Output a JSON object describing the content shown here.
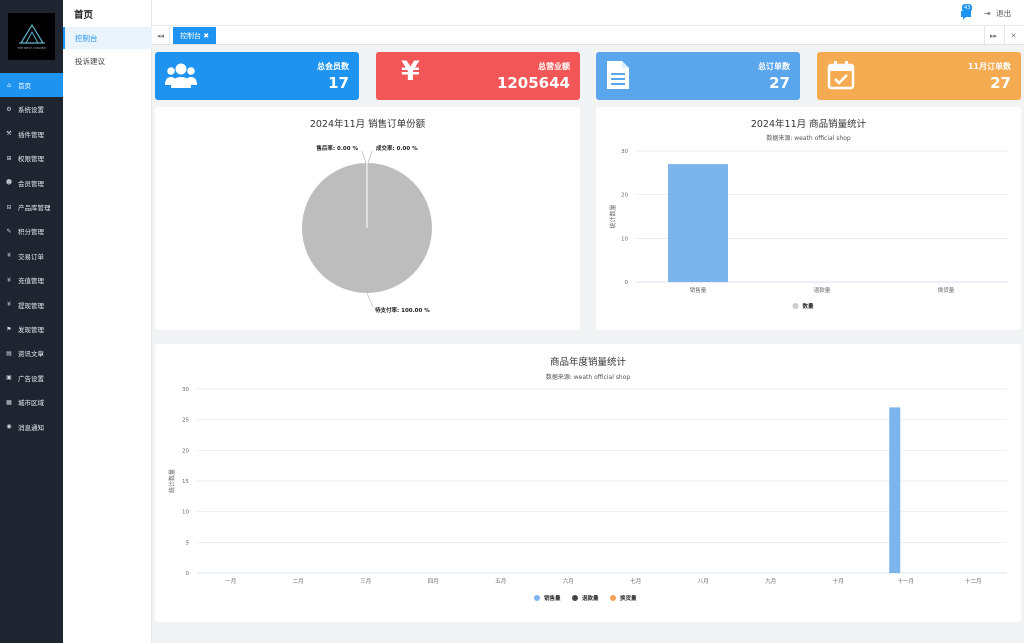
{
  "logo": {
    "text": "THE BEST CORNER"
  },
  "sidebar": {
    "items": [
      {
        "label": "首页",
        "icon": "home-icon",
        "glyph": "⌂",
        "active": true
      },
      {
        "label": "系统设置",
        "icon": "gear-icon",
        "glyph": "⚙",
        "active": false
      },
      {
        "label": "插件管理",
        "icon": "plug-icon",
        "glyph": "⚒",
        "active": false
      },
      {
        "label": "权限管理",
        "icon": "sitemap-icon",
        "glyph": "⊞",
        "active": false
      },
      {
        "label": "会员管理",
        "icon": "users-icon",
        "glyph": "☻",
        "active": false
      },
      {
        "label": "产品库管理",
        "icon": "product-icon",
        "glyph": "⊟",
        "active": false
      },
      {
        "label": "积分管理",
        "icon": "edit-icon",
        "glyph": "✎",
        "active": false
      },
      {
        "label": "交易订单",
        "icon": "yen-icon",
        "glyph": "¥",
        "active": false
      },
      {
        "label": "充值管理",
        "icon": "yen-icon",
        "glyph": "¥",
        "active": false
      },
      {
        "label": "提现管理",
        "icon": "yen-icon",
        "glyph": "¥",
        "active": false
      },
      {
        "label": "发现管理",
        "icon": "flag-icon",
        "glyph": "⚑",
        "active": false
      },
      {
        "label": "资讯文章",
        "icon": "news-icon",
        "glyph": "▤",
        "active": false
      },
      {
        "label": "广告设置",
        "icon": "image-icon",
        "glyph": "▣",
        "active": false
      },
      {
        "label": "城市区域",
        "icon": "map-icon",
        "glyph": "▦",
        "active": false
      },
      {
        "label": "消息通知",
        "icon": "comment-icon",
        "glyph": "◉",
        "active": false
      }
    ]
  },
  "subnav": {
    "title": "首页",
    "items": [
      {
        "label": "控制台",
        "active": true
      },
      {
        "label": "投诉建议",
        "active": false
      }
    ]
  },
  "topbar": {
    "message_count": "43",
    "logout": "退出"
  },
  "tabs": {
    "active": "控制台 ✖"
  },
  "stats": [
    {
      "label": "总会员数",
      "value": "17",
      "color": "#1e94f0",
      "icon": "users-icon"
    },
    {
      "label": "总营业额",
      "value": "1205644",
      "color": "#f35656",
      "icon": "yen-icon"
    },
    {
      "label": "总订单数",
      "value": "27",
      "color": "#5aa6ec",
      "icon": "document-icon"
    },
    {
      "label": "11月订单数",
      "value": "27",
      "color": "#f5ab52",
      "icon": "calendar-check-icon"
    }
  ],
  "chart_data": [
    {
      "type": "pie",
      "title": "2024年11月 销售订单份额",
      "slices": [
        {
          "label": "售后率: 0.00 %",
          "value": 0
        },
        {
          "label": "成交率: 0.00 %",
          "value": 0
        },
        {
          "label": "待支付率: 100.00 %",
          "value": 100
        }
      ]
    },
    {
      "type": "bar",
      "title": "2024年11月 商品销量统计",
      "subtitle": "数据来源: weath official shop",
      "ylabel": "统计数量",
      "categories": [
        "销售量",
        "退款量",
        "换货量"
      ],
      "ylim": [
        0,
        30
      ],
      "yticks": [
        0,
        10,
        20,
        30
      ],
      "series": [
        {
          "name": "数量",
          "values": [
            27,
            0,
            0
          ]
        }
      ]
    },
    {
      "type": "bar",
      "title": "商品年度销量统计",
      "subtitle": "数据来源: weath official shop",
      "ylabel": "统计数量",
      "categories": [
        "一月",
        "二月",
        "三月",
        "四月",
        "五月",
        "六月",
        "七月",
        "八月",
        "九月",
        "十月",
        "十一月",
        "十二月"
      ],
      "ylim": [
        0,
        30
      ],
      "yticks": [
        0,
        5,
        10,
        15,
        20,
        25,
        30
      ],
      "series": [
        {
          "name": "销售量",
          "values": [
            0,
            0,
            0,
            0,
            0,
            0,
            0,
            0,
            0,
            0,
            27,
            0
          ]
        },
        {
          "name": "退款量",
          "values": [
            0,
            0,
            0,
            0,
            0,
            0,
            0,
            0,
            0,
            0,
            0,
            0
          ]
        },
        {
          "name": "换货量",
          "values": [
            0,
            0,
            0,
            0,
            0,
            0,
            0,
            0,
            0,
            0,
            0,
            0
          ]
        }
      ]
    }
  ],
  "colors": {
    "bar": "#7cb5ec",
    "pie": "#bdbdbd",
    "series": [
      "#7cb5ec",
      "#434348",
      "#f7a35c"
    ],
    "legend_single": "#cccccc"
  }
}
